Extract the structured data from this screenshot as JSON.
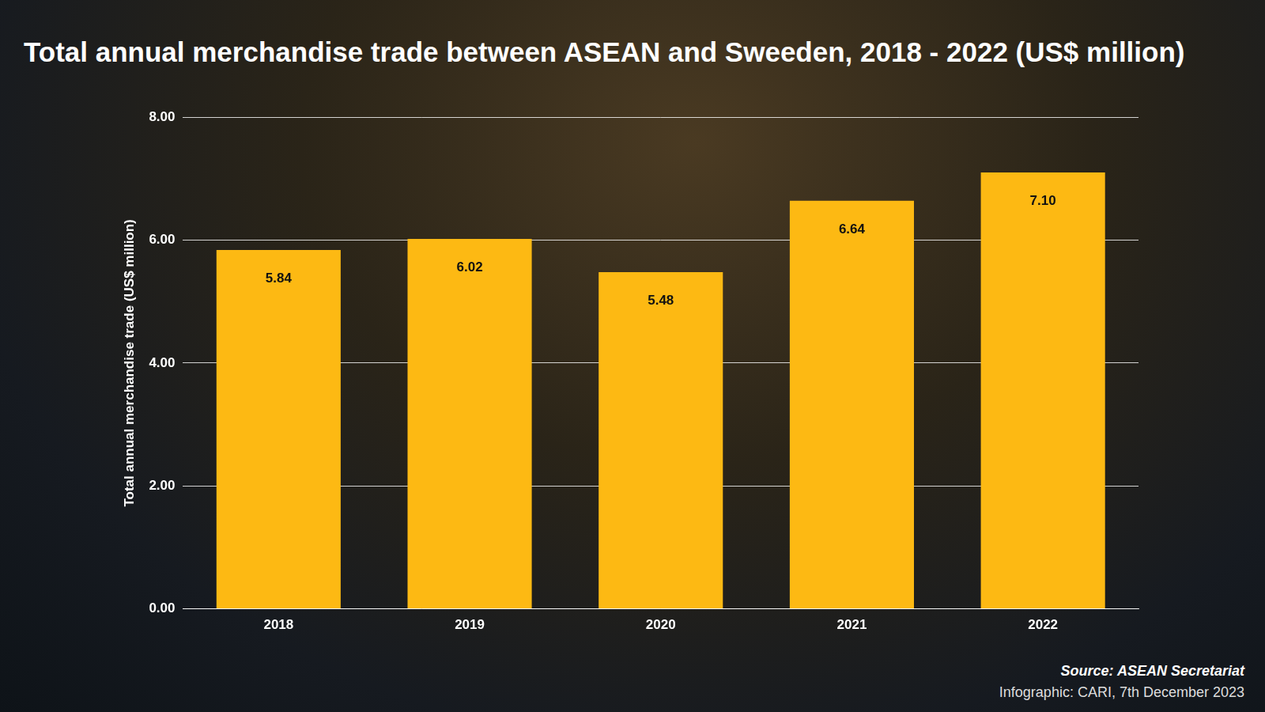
{
  "chart_data": {
    "type": "bar",
    "title": "Total annual merchandise trade between ASEAN and Sweeden, 2018 - 2022 (US$ million)",
    "y_label": "Total annual merchandise trade (US$ million)",
    "categories": [
      "2018",
      "2019",
      "2020",
      "2021",
      "2022"
    ],
    "values": [
      5.84,
      6.02,
      5.48,
      6.64,
      7.1
    ],
    "value_labels": [
      "5.84",
      "6.02",
      "5.48",
      "6.64",
      "7.10"
    ],
    "color": "#FDB913",
    "ylim": [
      0,
      8
    ],
    "yticks": [
      {
        "value": 0,
        "label": "0.00"
      },
      {
        "value": 2,
        "label": "2.00"
      },
      {
        "value": 4,
        "label": "4.00"
      },
      {
        "value": 6,
        "label": "6.00"
      },
      {
        "value": 8,
        "label": "8.00"
      }
    ],
    "grid": true,
    "data_labels": true,
    "annotations": [
      "Source: ASEAN Secretariat",
      "Infographic: CARI, 7th December 2023"
    ]
  }
}
